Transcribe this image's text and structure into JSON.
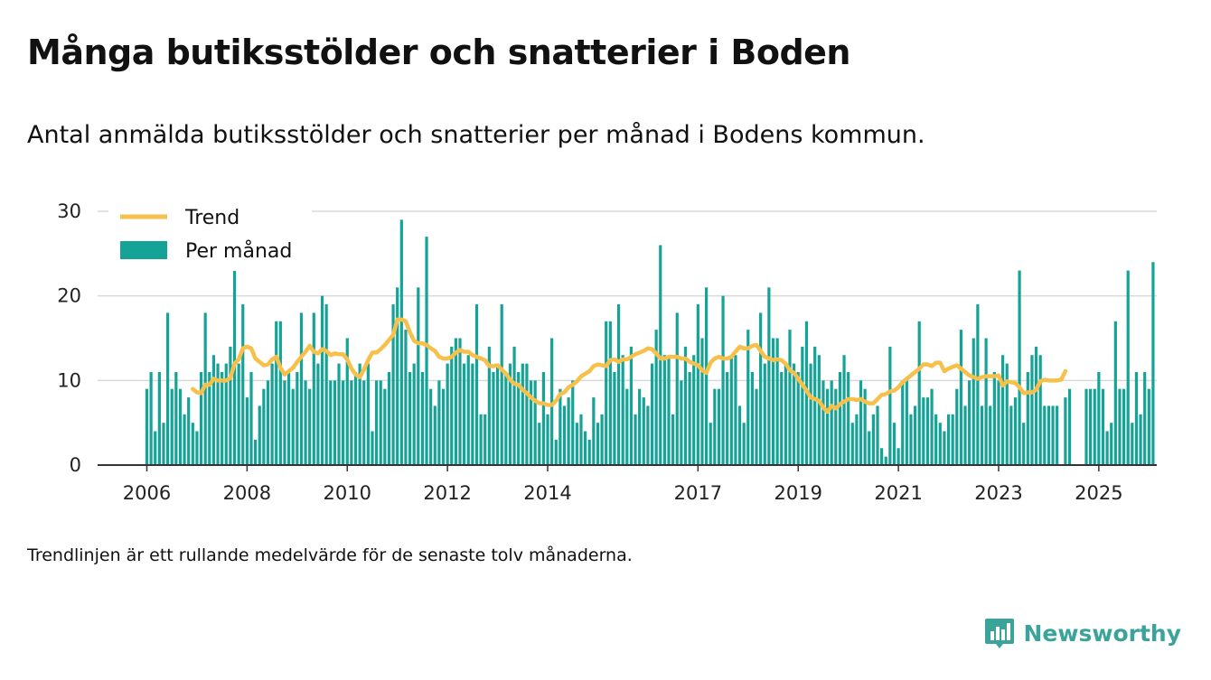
{
  "title": "Många butiksstölder och snatterier i Boden",
  "subtitle": "Antal anmälda butiksstölder och snatterier per månad i Bodens kommun.",
  "footnote": "Trendlinjen är ett rullande medelvärde för de senaste tolv månaderna.",
  "brand": {
    "name": "Newsworthy"
  },
  "colors": {
    "bars": "#14a396",
    "trend": "#f7c04a",
    "grid": "#d9d9d9",
    "axis": "#333333",
    "brand": "#3aa39a"
  },
  "chart_data": {
    "type": "bar",
    "x_start": "2006-01",
    "x_unit": "month",
    "x_ticks": [
      "2006",
      "2008",
      "2010",
      "2012",
      "2014",
      "2017",
      "2019",
      "2021",
      "2023",
      "2025"
    ],
    "y_ticks": [
      "0",
      "10",
      "20",
      "30"
    ],
    "ylim": [
      0,
      30
    ],
    "grid": "horizontal",
    "legend": {
      "position": "top-left",
      "items": [
        "Trend",
        "Per månad"
      ]
    },
    "series": [
      {
        "name": "Per månad",
        "type": "bar",
        "values": [
          9,
          11,
          4,
          11,
          5,
          18,
          9,
          11,
          9,
          6,
          8,
          5,
          4,
          11,
          18,
          11,
          13,
          12,
          11,
          12,
          14,
          25,
          12,
          19,
          8,
          11,
          3,
          7,
          9,
          10,
          12,
          17,
          17,
          10,
          11,
          9,
          11,
          18,
          10,
          9,
          18,
          12,
          20,
          19,
          10,
          10,
          12,
          10,
          15,
          10,
          11,
          12,
          10,
          12,
          4,
          10,
          10,
          9,
          11,
          19,
          21,
          29,
          16,
          11,
          12,
          21,
          11,
          27,
          9,
          7,
          10,
          9,
          12,
          14,
          15,
          15,
          12,
          13,
          12,
          19,
          6,
          6,
          14,
          11,
          12,
          19,
          11,
          12,
          14,
          11,
          12,
          12,
          10,
          10,
          5,
          11,
          6,
          15,
          3,
          9,
          7,
          8,
          10,
          5,
          6,
          4,
          3,
          8,
          5,
          6,
          17,
          17,
          11,
          19,
          13,
          9,
          14,
          6,
          9,
          8,
          7,
          12,
          16,
          26,
          13,
          13,
          6,
          18,
          10,
          14,
          11,
          13,
          19,
          15,
          21,
          5,
          9,
          9,
          20,
          11,
          13,
          13,
          7,
          5,
          16,
          11,
          9,
          18,
          12,
          21,
          15,
          15,
          11,
          12,
          16,
          12,
          11,
          14,
          17,
          12,
          14,
          13,
          10,
          9,
          10,
          9,
          11,
          13,
          11,
          5,
          6,
          10,
          9,
          4,
          6,
          7,
          2,
          1,
          14,
          5,
          2,
          10,
          10,
          6,
          7,
          17,
          8,
          8,
          9,
          6,
          5,
          4,
          6,
          6,
          9,
          16,
          7,
          10,
          15,
          19,
          7,
          15,
          7,
          11,
          10,
          13,
          12,
          7,
          8,
          23,
          5,
          11,
          13,
          14,
          13,
          7,
          7,
          7,
          7,
          0,
          8,
          9,
          0,
          0,
          0,
          9,
          9,
          9,
          11,
          9,
          4,
          5,
          17,
          9,
          9,
          23,
          5,
          11,
          6,
          11,
          9,
          24
        ]
      },
      {
        "name": "Trend",
        "type": "line",
        "values": [
          null,
          null,
          null,
          null,
          null,
          null,
          null,
          null,
          null,
          null,
          null,
          9.0,
          8.6,
          8.5,
          9.5,
          9.5,
          10.2,
          10.0,
          10.0,
          10.0,
          10.3,
          12.0,
          12.5,
          13.8,
          14.0,
          13.8,
          12.6,
          12.2,
          11.8,
          11.9,
          12.5,
          12.8,
          11.5,
          10.7,
          11.1,
          11.5,
          12.2,
          12.8,
          13.4,
          14.1,
          13.4,
          13.2,
          13.7,
          13.5,
          13.0,
          13.2,
          13.1,
          13.1,
          12.5,
          11.4,
          10.7,
          10.4,
          11.3,
          12.4,
          13.3,
          13.3,
          13.7,
          14.2,
          14.8,
          15.4,
          17.2,
          17.2,
          17.0,
          15.7,
          14.7,
          14.4,
          14.4,
          14.2,
          13.8,
          13.5,
          12.8,
          12.6,
          12.6,
          12.8,
          13.3,
          13.6,
          13.4,
          13.4,
          13.0,
          12.8,
          12.6,
          12.4,
          11.7,
          11.7,
          11.8,
          11.3,
          10.8,
          10.1,
          9.6,
          9.5,
          8.9,
          8.5,
          8.0,
          7.6,
          7.3,
          7.3,
          7.1,
          7.1,
          7.6,
          8.4,
          8.6,
          9.2,
          9.5,
          9.9,
          10.5,
          10.8,
          11.1,
          11.7,
          11.9,
          11.8,
          11.7,
          12.4,
          12.5,
          12.2,
          12.5,
          12.5,
          12.8,
          13.1,
          13.3,
          13.5,
          13.8,
          13.7,
          13.2,
          12.6,
          12.6,
          12.8,
          12.8,
          12.8,
          12.6,
          12.6,
          12.2,
          12.0,
          11.8,
          11.2,
          10.9,
          12.1,
          12.6,
          12.8,
          12.6,
          12.6,
          12.8,
          13.4,
          14.0,
          13.8,
          13.8,
          14.1,
          14.2,
          13.5,
          12.8,
          12.6,
          12.4,
          12.5,
          12.4,
          12.0,
          11.2,
          10.9,
          10.2,
          9.5,
          8.8,
          8.0,
          7.8,
          7.6,
          6.8,
          6.3,
          7.0,
          6.7,
          7.2,
          7.5,
          7.8,
          7.8,
          7.7,
          7.8,
          7.5,
          7.3,
          7.3,
          7.8,
          8.3,
          8.4,
          8.7,
          8.8,
          9.2,
          9.8,
          10.2,
          10.6,
          11.0,
          11.4,
          11.9,
          11.9,
          11.7,
          12.1,
          12.1,
          11.1,
          11.4,
          11.6,
          11.8,
          11.4,
          11.0,
          10.6,
          10.4,
          10.2,
          10.4,
          10.5,
          10.5,
          10.5,
          10.6,
          9.4,
          9.9,
          9.8,
          9.7,
          9.2,
          8.5,
          8.6,
          8.6,
          8.9,
          9.9,
          10.1,
          10.0,
          10.0,
          10.0,
          10.1,
          11.1
        ]
      }
    ]
  }
}
